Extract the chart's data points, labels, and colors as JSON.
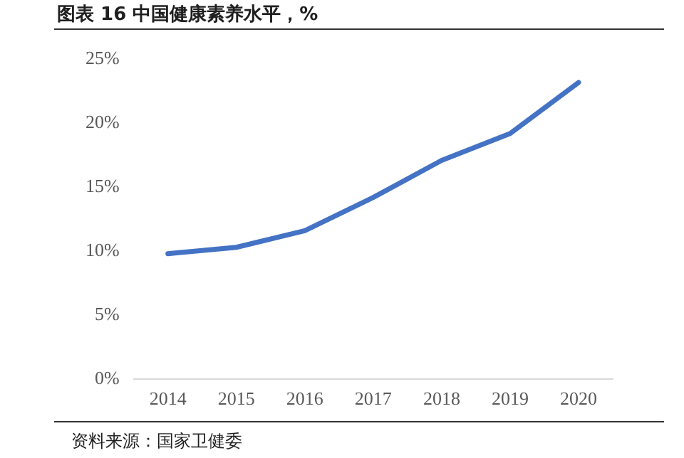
{
  "chart_data": {
    "type": "line",
    "title": "图表 16 中国健康素养水平，%",
    "categories": [
      "2014",
      "2015",
      "2016",
      "2017",
      "2018",
      "2019",
      "2020"
    ],
    "series": [
      {
        "color": "#4472c4",
        "values": [
          9.8,
          10.3,
          11.6,
          14.2,
          17.1,
          19.2,
          23.2
        ]
      }
    ],
    "ylim": [
      0,
      25
    ],
    "yticks": [
      {
        "value": 0,
        "label": "0%"
      },
      {
        "value": 5,
        "label": "5%"
      },
      {
        "value": 10,
        "label": "10%"
      },
      {
        "value": 15,
        "label": "15%"
      },
      {
        "value": 20,
        "label": "20%"
      },
      {
        "value": 25,
        "label": "25%"
      }
    ],
    "grid": false,
    "legend": false,
    "marker": "none",
    "line_style": "solid",
    "annotations": [
      "资料来源：国家卫健委"
    ]
  }
}
